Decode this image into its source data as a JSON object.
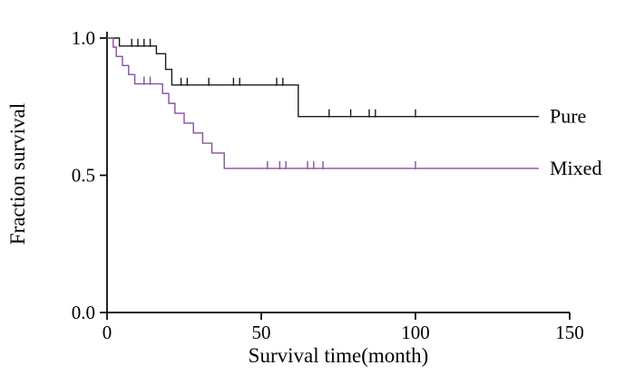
{
  "figure": {
    "background": "#ffffff"
  },
  "chart_data": {
    "type": "line",
    "subtype": "kaplan_meier_step_curve",
    "title": "",
    "xlabel": "Survival time(month)",
    "ylabel": "Fraction survival",
    "xlim": [
      0,
      150
    ],
    "ylim": [
      0,
      1.0
    ],
    "xticks": [
      0,
      50,
      100,
      150
    ],
    "xtick_labels": [
      "0",
      "50",
      "100",
      "150"
    ],
    "yticks": [
      0,
      0.5,
      1.0
    ],
    "ytick_labels": [
      "0.0",
      "0.5",
      "1.0"
    ],
    "grid": false,
    "axis_color": "#000000",
    "legend_position": "labels-at-curve-end",
    "series": [
      {
        "name": "Pure",
        "color": "#1a1a1a",
        "end": 140,
        "steps": [
          [
            0,
            1.0
          ],
          [
            4,
            0.971
          ],
          [
            16,
            0.943
          ],
          [
            19,
            0.886
          ],
          [
            21,
            0.829
          ],
          [
            62,
            0.714
          ]
        ],
        "censors": [
          8,
          10,
          12,
          14,
          24,
          26,
          33,
          41,
          43,
          55,
          57,
          72,
          79,
          85,
          87,
          100
        ]
      },
      {
        "name": "Mixed",
        "color": "#8a4f9e",
        "end": 140,
        "steps": [
          [
            0,
            1.0
          ],
          [
            2,
            0.967
          ],
          [
            3,
            0.933
          ],
          [
            5,
            0.9
          ],
          [
            7,
            0.867
          ],
          [
            9,
            0.833
          ],
          [
            18,
            0.798
          ],
          [
            20,
            0.762
          ],
          [
            22,
            0.726
          ],
          [
            25,
            0.69
          ],
          [
            28,
            0.654
          ],
          [
            31,
            0.617
          ],
          [
            34,
            0.581
          ],
          [
            38,
            0.525
          ]
        ],
        "censors": [
          12,
          14,
          52,
          56,
          58,
          65,
          67,
          70,
          100
        ]
      }
    ]
  }
}
